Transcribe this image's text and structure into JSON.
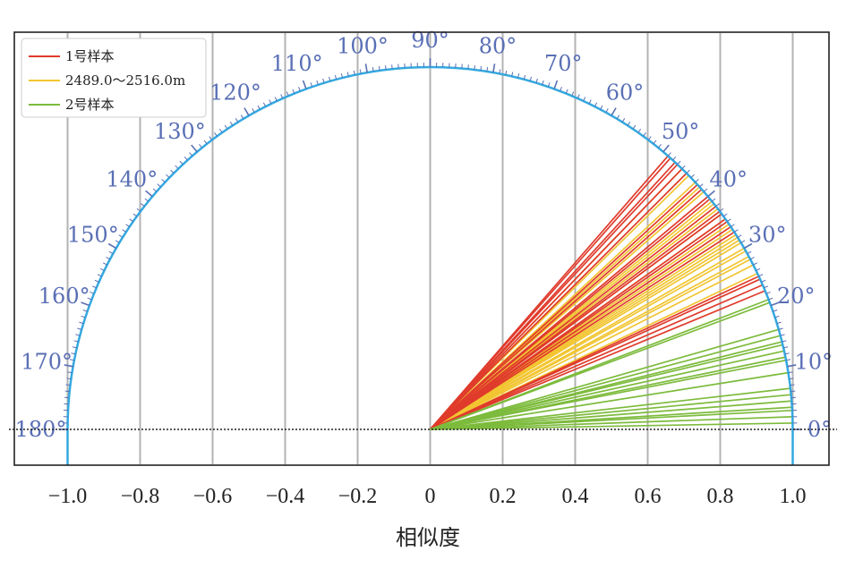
{
  "chart_data": {
    "type": "polar-semicircle",
    "xlabel": "相似度",
    "xlim": [
      -1.0,
      1.0
    ],
    "x_ticks": [
      "−1.0",
      "−0.8",
      "−0.6",
      "−0.4",
      "−0.2",
      "0",
      "0.2",
      "0.4",
      "0.6",
      "0.8",
      "1.0"
    ],
    "angle_ticks": [
      "0°",
      "10°",
      "20°",
      "30°",
      "40°",
      "50°",
      "60°",
      "70°",
      "80°",
      "90°",
      "100°",
      "110°",
      "120°",
      "130°",
      "140°",
      "150°",
      "160°",
      "170°",
      "180°"
    ],
    "legend_position": "top-left",
    "series": [
      {
        "name": "1号样本",
        "color": "#e03b2c",
        "angles_deg": [
          22.5,
          23.5,
          24.5,
          25.0,
          33.0,
          34.0,
          35.0,
          35.5,
          36.5,
          37.0,
          38.0,
          39.5,
          40.0,
          41.5,
          42.5,
          45.0,
          46.0,
          47.0,
          47.5,
          48.5,
          49.0
        ]
      },
      {
        "name": "2489.0～2516.0m",
        "color": "#f2c531",
        "angles_deg": [
          25.5,
          27.0,
          28.0,
          28.5,
          29.5,
          30.0,
          31.0,
          31.5,
          32.0,
          32.5,
          33.5,
          34.5,
          35.5,
          36.5,
          37.5,
          38.5,
          39.0,
          41.0,
          42.0,
          43.0,
          44.5,
          46.0
        ]
      },
      {
        "name": "2号样本",
        "color": "#7dbb3c",
        "angles_deg": [
          1.0,
          2.0,
          3.0,
          3.5,
          4.5,
          5.5,
          6.5,
          9.0,
          11.0,
          11.5,
          12.5,
          13.5,
          14.0,
          15.0,
          16.0,
          20.5,
          21.0
        ]
      }
    ]
  },
  "colors": {
    "arc": "#33a9e0",
    "angle_label": "#5a6fb5",
    "grid": "#b3b3b3",
    "frame": "#222222"
  }
}
